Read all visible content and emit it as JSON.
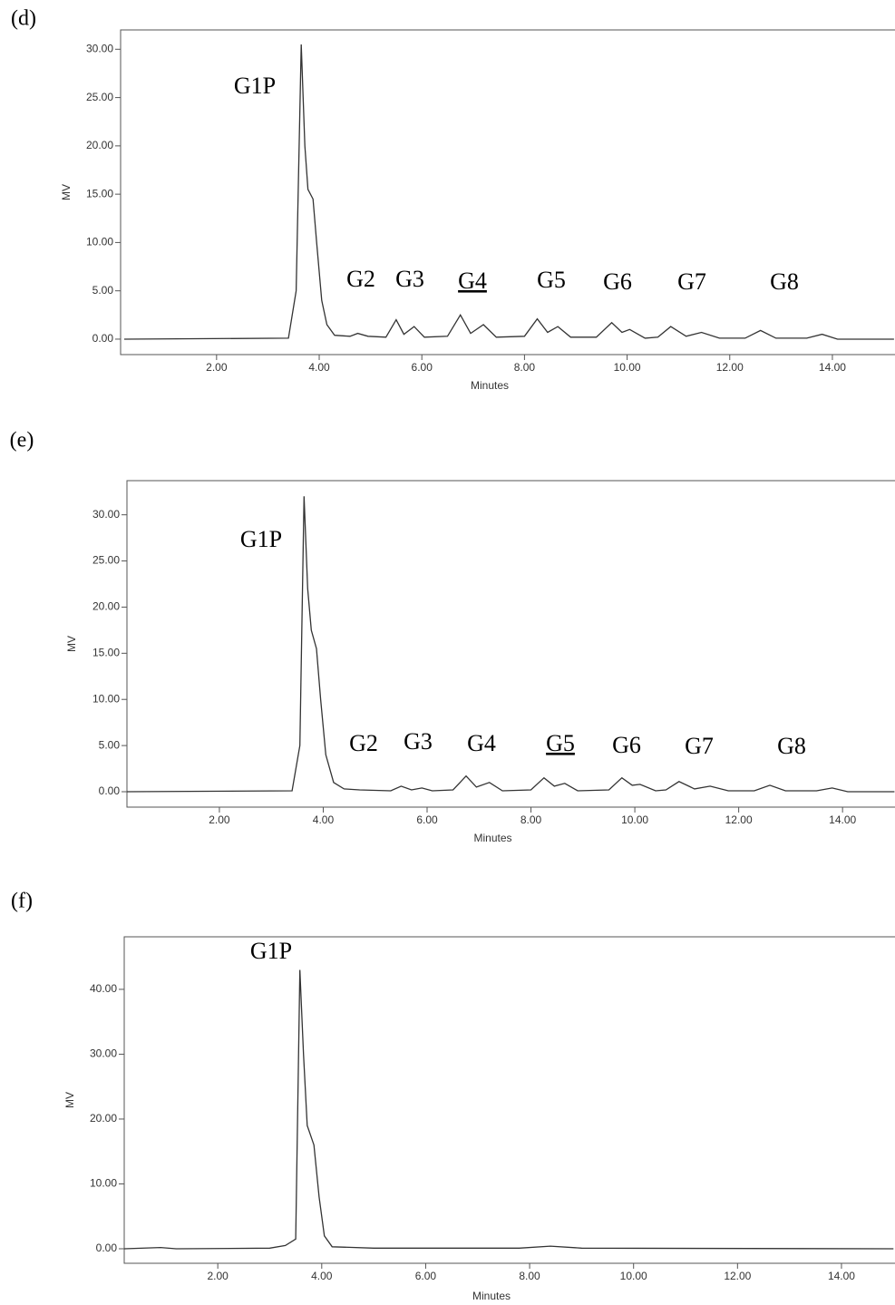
{
  "chart_data": [
    {
      "type": "line",
      "title": "(d)",
      "x_label": "Minutes",
      "y_label": "MV",
      "color": "#333333",
      "x": [
        0.2,
        3.4,
        3.55,
        3.65,
        3.72,
        3.78,
        3.88,
        3.95,
        4.05,
        4.15,
        4.3,
        4.6,
        4.75,
        4.95,
        5.3,
        5.5,
        5.65,
        5.85,
        6.05,
        6.5,
        6.75,
        6.95,
        7.2,
        7.45,
        8.0,
        8.25,
        8.45,
        8.65,
        8.9,
        9.4,
        9.7,
        9.9,
        10.05,
        10.35,
        10.6,
        10.85,
        11.15,
        11.45,
        11.8,
        12.3,
        12.6,
        12.9,
        13.5,
        13.8,
        14.1,
        15.2
      ],
      "values": [
        0,
        0.1,
        5,
        30.5,
        20,
        15.5,
        14.5,
        10,
        4,
        1.5,
        0.4,
        0.3,
        0.6,
        0.3,
        0.2,
        2,
        0.5,
        1.3,
        0.2,
        0.3,
        2.5,
        0.6,
        1.5,
        0.2,
        0.3,
        2.1,
        0.7,
        1.3,
        0.2,
        0.2,
        1.7,
        0.7,
        1.0,
        0.1,
        0.2,
        1.3,
        0.3,
        0.7,
        0.1,
        0.1,
        0.9,
        0.1,
        0.1,
        0.5,
        0,
        0
      ],
      "xlim": [
        0.13,
        15.22
      ],
      "ylim": [
        -1.6,
        32
      ],
      "xticks": [
        {
          "value": 2,
          "label": "2.00"
        },
        {
          "value": 4,
          "label": "4.00"
        },
        {
          "value": 6,
          "label": "6.00"
        },
        {
          "value": 8,
          "label": "8.00"
        },
        {
          "value": 10,
          "label": "10.00"
        },
        {
          "value": 12,
          "label": "12.00"
        },
        {
          "value": 14,
          "label": "14.00"
        }
      ],
      "yticks": [
        {
          "value": 0,
          "label": "0.00"
        },
        {
          "value": 5,
          "label": "5.00"
        },
        {
          "value": 10,
          "label": "10.00"
        },
        {
          "value": 15,
          "label": "15.00"
        },
        {
          "value": 20,
          "label": "20.00"
        },
        {
          "value": 25,
          "label": "25.00"
        },
        {
          "value": 30,
          "label": "30.00"
        }
      ],
      "annotations": [
        {
          "text": "G1P",
          "underline": false
        },
        {
          "text": "G2",
          "underline": false
        },
        {
          "text": "G3",
          "underline": false
        },
        {
          "text": "G4",
          "underline": true
        },
        {
          "text": "G5",
          "underline": false
        },
        {
          "text": "G6",
          "underline": false
        },
        {
          "text": "G7",
          "underline": false
        },
        {
          "text": "G8",
          "underline": false
        }
      ]
    },
    {
      "type": "line",
      "title": "(e)",
      "x_label": "Minutes",
      "y_label": "MV",
      "color": "#333333",
      "x": [
        0.22,
        3.4,
        3.55,
        3.63,
        3.7,
        3.77,
        3.87,
        3.95,
        4.05,
        4.2,
        4.4,
        4.7,
        5.3,
        5.5,
        5.7,
        5.9,
        6.1,
        6.5,
        6.75,
        6.95,
        7.2,
        7.45,
        8.0,
        8.25,
        8.45,
        8.65,
        8.9,
        9.5,
        9.75,
        9.95,
        10.1,
        10.4,
        10.6,
        10.85,
        11.15,
        11.45,
        11.8,
        12.3,
        12.6,
        12.9,
        13.5,
        13.8,
        14.1,
        15.0
      ],
      "values": [
        0,
        0.1,
        5,
        32,
        22,
        17.5,
        15.5,
        10,
        4,
        1,
        0.3,
        0.2,
        0.1,
        0.6,
        0.2,
        0.4,
        0.1,
        0.2,
        1.7,
        0.5,
        1.0,
        0.1,
        0.2,
        1.5,
        0.6,
        0.9,
        0.1,
        0.2,
        1.5,
        0.7,
        0.8,
        0.1,
        0.2,
        1.1,
        0.3,
        0.6,
        0.1,
        0.1,
        0.7,
        0.1,
        0.1,
        0.4,
        0,
        0
      ],
      "xlim": [
        0.22,
        15.01
      ],
      "ylim": [
        -1.67,
        33.7
      ],
      "xticks": [
        {
          "value": 2,
          "label": "2.00"
        },
        {
          "value": 4,
          "label": "4.00"
        },
        {
          "value": 6,
          "label": "6.00"
        },
        {
          "value": 8,
          "label": "8.00"
        },
        {
          "value": 10,
          "label": "10.00"
        },
        {
          "value": 12,
          "label": "12.00"
        },
        {
          "value": 14,
          "label": "14.00"
        }
      ],
      "yticks": [
        {
          "value": 0,
          "label": "0.00"
        },
        {
          "value": 5,
          "label": "5.00"
        },
        {
          "value": 10,
          "label": "10.00"
        },
        {
          "value": 15,
          "label": "15.00"
        },
        {
          "value": 20,
          "label": "20.00"
        },
        {
          "value": 25,
          "label": "25.00"
        },
        {
          "value": 30,
          "label": "30.00"
        }
      ],
      "annotations": [
        {
          "text": "G1P",
          "underline": false
        },
        {
          "text": "G2",
          "underline": false
        },
        {
          "text": "G3",
          "underline": false
        },
        {
          "text": "G4",
          "underline": false
        },
        {
          "text": "G5",
          "underline": true
        },
        {
          "text": "G6",
          "underline": false
        },
        {
          "text": "G7",
          "underline": false
        },
        {
          "text": "G8",
          "underline": false
        }
      ]
    },
    {
      "type": "line",
      "title": "(f)",
      "x_label": "Minutes",
      "y_label": "MV",
      "color": "#333333",
      "x": [
        0.2,
        0.9,
        1.2,
        3.0,
        3.3,
        3.5,
        3.58,
        3.65,
        3.72,
        3.85,
        3.95,
        4.05,
        4.2,
        5.0,
        7.8,
        8.4,
        9.0,
        15.0
      ],
      "values": [
        0,
        0.2,
        0,
        0.1,
        0.5,
        1.5,
        43,
        30,
        19,
        16,
        8,
        2,
        0.3,
        0.1,
        0.1,
        0.4,
        0.1,
        0
      ],
      "xlim": [
        0.2,
        15.03
      ],
      "ylim": [
        -2.24,
        48.1
      ],
      "xticks": [
        {
          "value": 2,
          "label": "2.00"
        },
        {
          "value": 4,
          "label": "4.00"
        },
        {
          "value": 6,
          "label": "6.00"
        },
        {
          "value": 8,
          "label": "8.00"
        },
        {
          "value": 10,
          "label": "10.00"
        },
        {
          "value": 12,
          "label": "12.00"
        },
        {
          "value": 14,
          "label": "14.00"
        }
      ],
      "yticks": [
        {
          "value": 0,
          "label": "0.00"
        },
        {
          "value": 10,
          "label": "10.00"
        },
        {
          "value": 20,
          "label": "20.00"
        },
        {
          "value": 30,
          "label": "30.00"
        },
        {
          "value": 40,
          "label": "40.00"
        }
      ],
      "annotations": [
        {
          "text": "G1P",
          "underline": false
        }
      ]
    }
  ]
}
